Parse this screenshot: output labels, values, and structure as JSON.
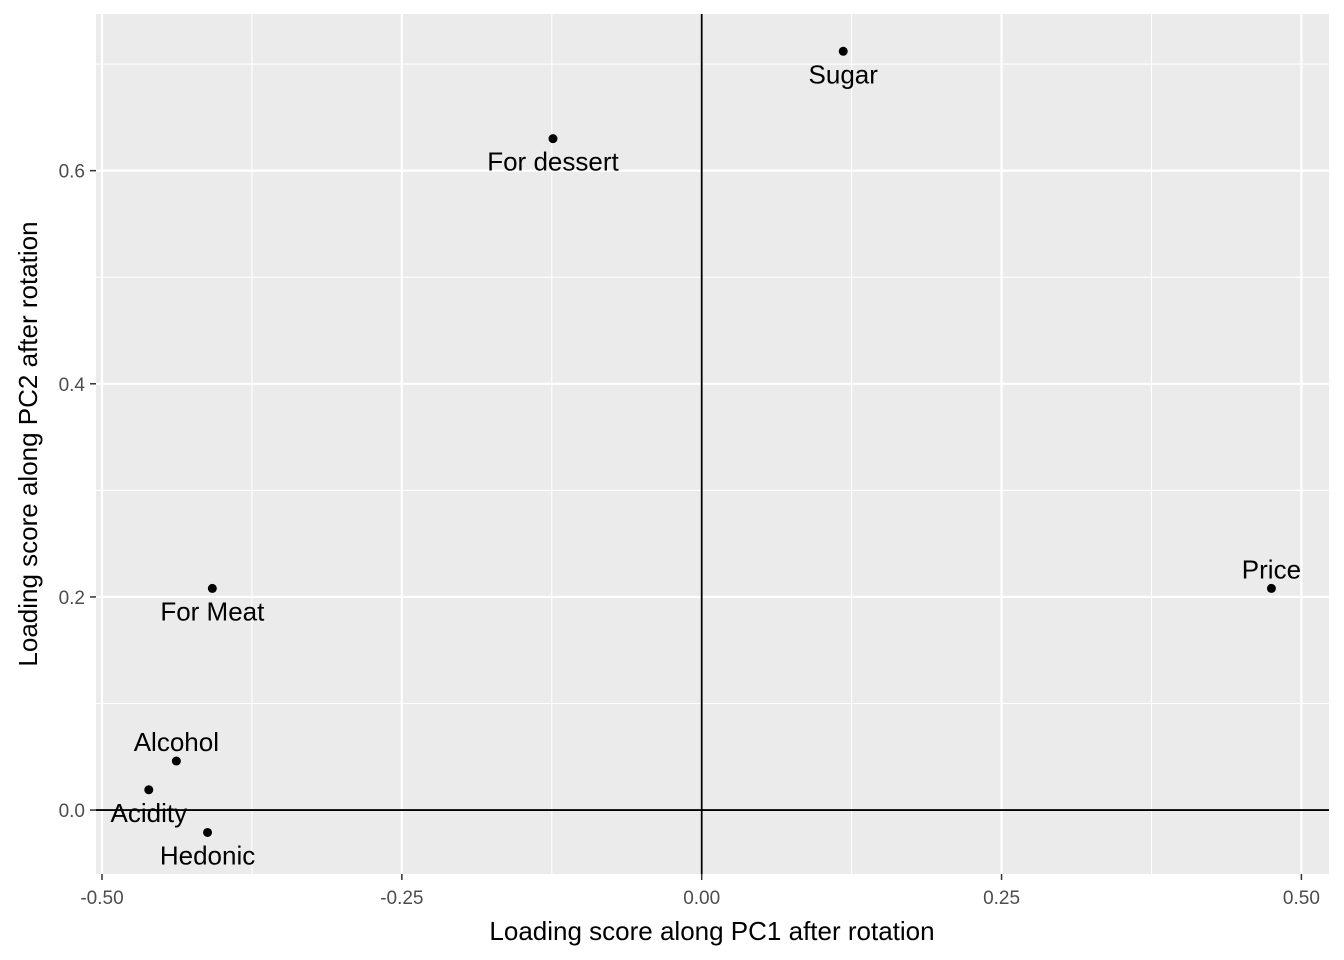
{
  "chart_data": {
    "type": "scatter",
    "xlabel": "Loading score along PC1 after rotation",
    "ylabel": "Loading score along PC2 after rotation",
    "xlim": [
      -0.505,
      0.523
    ],
    "ylim": [
      -0.06,
      0.747
    ],
    "x_ticks": [
      -0.5,
      -0.25,
      0.0,
      0.25,
      0.5
    ],
    "x_tick_labels": [
      "-0.50",
      "-0.25",
      "0.00",
      "0.25",
      "0.50"
    ],
    "y_ticks": [
      0.0,
      0.2,
      0.4,
      0.6
    ],
    "y_tick_labels": [
      "0.0",
      "0.2",
      "0.4",
      "0.6"
    ],
    "grid": true,
    "reference_lines": {
      "x": 0,
      "y": 0
    },
    "points": [
      {
        "label": "Sugar",
        "x": 0.118,
        "y": 0.712,
        "label_pos": "below"
      },
      {
        "label": "For dessert",
        "x": -0.124,
        "y": 0.63,
        "label_pos": "below"
      },
      {
        "label": "Price",
        "x": 0.475,
        "y": 0.208,
        "label_pos": "above"
      },
      {
        "label": "For Meat",
        "x": -0.408,
        "y": 0.208,
        "label_pos": "below"
      },
      {
        "label": "Alcohol",
        "x": -0.438,
        "y": 0.046,
        "label_pos": "above"
      },
      {
        "label": "Acidity",
        "x": -0.461,
        "y": 0.019,
        "label_pos": "below"
      },
      {
        "label": "Hedonic",
        "x": -0.412,
        "y": -0.021,
        "label_pos": "below"
      }
    ],
    "colors": {
      "panel": "#ebebeb",
      "grid_major": "#ffffff",
      "points": "#000000",
      "reference_lines": "#000000"
    }
  }
}
